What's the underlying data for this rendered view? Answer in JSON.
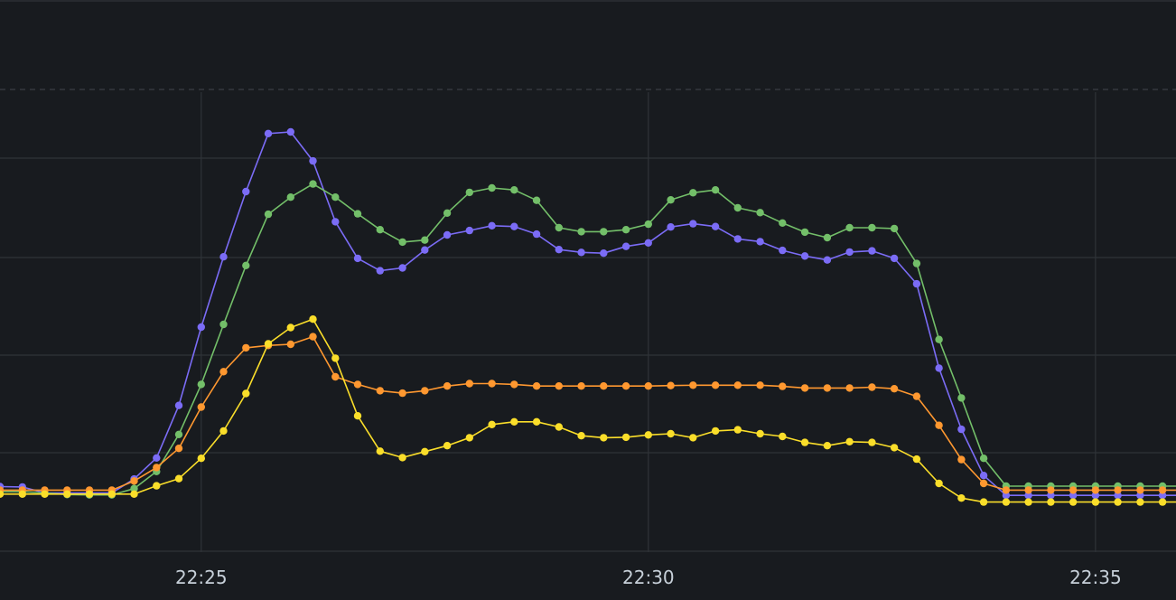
{
  "chart_data": {
    "type": "line",
    "grid": true,
    "x_ticks": [
      "22:25",
      "22:30",
      "22:35"
    ],
    "x_tick_minutes": [
      25,
      30,
      35
    ],
    "x_range_minutes": [
      22.75,
      35.9
    ],
    "y_range": [
      0,
      1
    ],
    "x_start_minute": 22.75,
    "x_step_minutes": 0.25,
    "series": [
      {
        "color": "#7b6cf6",
        "values": [
          0.108,
          0.107,
          0.092,
          0.092,
          0.092,
          0.092,
          0.127,
          0.18,
          0.312,
          0.509,
          0.686,
          0.85,
          0.996,
          1.0,
          0.927,
          0.774,
          0.682,
          0.651,
          0.658,
          0.703,
          0.741,
          0.752,
          0.764,
          0.762,
          0.743,
          0.704,
          0.697,
          0.695,
          0.712,
          0.721,
          0.761,
          0.769,
          0.762,
          0.731,
          0.724,
          0.702,
          0.688,
          0.678,
          0.698,
          0.701,
          0.682,
          0.618,
          0.406,
          0.252,
          0.136,
          0.086,
          0.086,
          0.086,
          0.086,
          0.086,
          0.086,
          0.086,
          0.086,
          0.086
        ]
      },
      {
        "color": "#73bf69",
        "values": [
          0.095,
          0.095,
          0.092,
          0.088,
          0.087,
          0.087,
          0.103,
          0.146,
          0.239,
          0.365,
          0.516,
          0.664,
          0.793,
          0.836,
          0.869,
          0.836,
          0.794,
          0.754,
          0.723,
          0.728,
          0.796,
          0.848,
          0.859,
          0.854,
          0.828,
          0.759,
          0.749,
          0.749,
          0.754,
          0.768,
          0.829,
          0.847,
          0.854,
          0.809,
          0.797,
          0.771,
          0.748,
          0.734,
          0.759,
          0.759,
          0.757,
          0.669,
          0.478,
          0.331,
          0.179,
          0.109,
          0.109,
          0.109,
          0.109,
          0.109,
          0.109,
          0.109,
          0.109,
          0.109
        ]
      },
      {
        "color": "#ff9830",
        "values": [
          0.099,
          0.099,
          0.099,
          0.099,
          0.099,
          0.099,
          0.122,
          0.156,
          0.204,
          0.308,
          0.397,
          0.457,
          0.463,
          0.466,
          0.485,
          0.384,
          0.365,
          0.349,
          0.343,
          0.349,
          0.361,
          0.367,
          0.367,
          0.365,
          0.361,
          0.361,
          0.361,
          0.361,
          0.361,
          0.361,
          0.362,
          0.363,
          0.363,
          0.363,
          0.363,
          0.36,
          0.356,
          0.356,
          0.356,
          0.358,
          0.354,
          0.335,
          0.262,
          0.176,
          0.116,
          0.099,
          0.099,
          0.099,
          0.099,
          0.099,
          0.099,
          0.099,
          0.099,
          0.099
        ]
      },
      {
        "color": "#fade2a",
        "values": [
          0.089,
          0.089,
          0.089,
          0.089,
          0.089,
          0.089,
          0.089,
          0.11,
          0.128,
          0.179,
          0.248,
          0.342,
          0.467,
          0.508,
          0.529,
          0.431,
          0.286,
          0.197,
          0.181,
          0.196,
          0.211,
          0.231,
          0.264,
          0.271,
          0.271,
          0.258,
          0.236,
          0.231,
          0.232,
          0.238,
          0.241,
          0.231,
          0.248,
          0.251,
          0.241,
          0.234,
          0.219,
          0.211,
          0.221,
          0.219,
          0.206,
          0.177,
          0.116,
          0.079,
          0.069,
          0.069,
          0.069,
          0.069,
          0.069,
          0.069,
          0.069,
          0.069,
          0.069,
          0.069
        ]
      }
    ]
  }
}
